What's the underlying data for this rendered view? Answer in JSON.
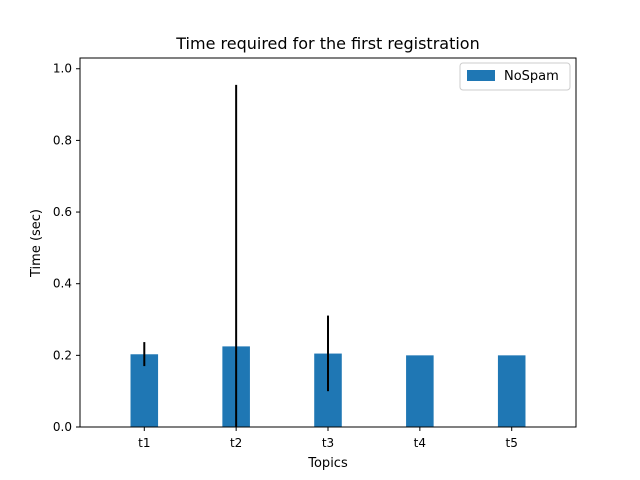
{
  "chart_data": {
    "type": "bar",
    "title": "Time required for the first registration",
    "xlabel": "Topics",
    "ylabel": "Time (sec)",
    "categories": [
      "t1",
      "t2",
      "t3",
      "t4",
      "t5"
    ],
    "series": [
      {
        "name": "NoSpam",
        "values": [
          0.203,
          0.225,
          0.205,
          0.2,
          0.2
        ],
        "error_low": [
          0.17,
          0.0,
          0.1,
          0.2,
          0.2
        ],
        "error_high": [
          0.237,
          0.955,
          0.311,
          0.2,
          0.2
        ],
        "color": "#1f77b4"
      }
    ],
    "ylim": [
      0,
      1.03
    ],
    "yticks": [
      "0.0",
      "0.2",
      "0.4",
      "0.6",
      "0.8",
      "1.0"
    ],
    "grid": false,
    "legend_position": "top-right",
    "error_bar_color": "#000000"
  }
}
